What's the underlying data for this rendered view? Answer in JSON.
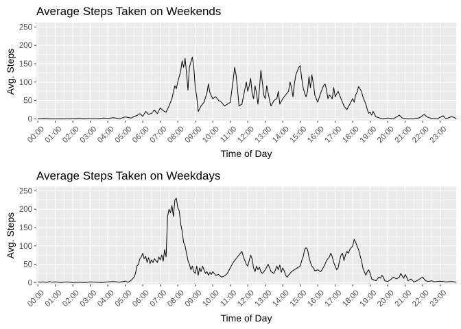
{
  "chart_data": [
    {
      "type": "line",
      "title": "Average Steps Taken on Weekends",
      "xlabel": "Time of Day",
      "ylabel": "Avg. Steps",
      "ylim": [
        -5,
        262
      ],
      "xlim": [
        -1,
        287
      ],
      "y_ticks": [
        0,
        50,
        100,
        150,
        200,
        250
      ],
      "x_tick_labels": [
        "00:00",
        "01:00",
        "02:00",
        "03:00",
        "04:00",
        "05:00",
        "06:00",
        "07:00",
        "08:00",
        "09:00",
        "10:00",
        "11:00",
        "12:00",
        "13:00",
        "14:00",
        "15:00",
        "16:00",
        "17:00",
        "18:00",
        "19:00",
        "20:00",
        "21:00",
        "22:00",
        "23:00"
      ],
      "grid": true,
      "x_unit": "5-minute interval of day",
      "points": [
        [
          0,
          0
        ],
        [
          4,
          1
        ],
        [
          8,
          0
        ],
        [
          20,
          0
        ],
        [
          28,
          1
        ],
        [
          40,
          0
        ],
        [
          45,
          2
        ],
        [
          48,
          1
        ],
        [
          52,
          3
        ],
        [
          56,
          0
        ],
        [
          60,
          5
        ],
        [
          64,
          2
        ],
        [
          66,
          6
        ],
        [
          68,
          9
        ],
        [
          70,
          14
        ],
        [
          72,
          7
        ],
        [
          74,
          20
        ],
        [
          76,
          12
        ],
        [
          78,
          15
        ],
        [
          80,
          24
        ],
        [
          82,
          14
        ],
        [
          84,
          30
        ],
        [
          86,
          22
        ],
        [
          88,
          18
        ],
        [
          90,
          35
        ],
        [
          92,
          55
        ],
        [
          94,
          90
        ],
        [
          95,
          82
        ],
        [
          96,
          100
        ],
        [
          98,
          130
        ],
        [
          99,
          158
        ],
        [
          100,
          140
        ],
        [
          101,
          165
        ],
        [
          102,
          125
        ],
        [
          103,
          78
        ],
        [
          104,
          140
        ],
        [
          105,
          155
        ],
        [
          106,
          168
        ],
        [
          107,
          140
        ],
        [
          108,
          85
        ],
        [
          109,
          60
        ],
        [
          110,
          20
        ],
        [
          112,
          35
        ],
        [
          114,
          45
        ],
        [
          116,
          70
        ],
        [
          117,
          95
        ],
        [
          118,
          72
        ],
        [
          119,
          62
        ],
        [
          120,
          55
        ],
        [
          122,
          60
        ],
        [
          124,
          50
        ],
        [
          126,
          45
        ],
        [
          128,
          35
        ],
        [
          130,
          40
        ],
        [
          132,
          45
        ],
        [
          134,
          105
        ],
        [
          135,
          140
        ],
        [
          136,
          120
        ],
        [
          137,
          80
        ],
        [
          138,
          35
        ],
        [
          140,
          40
        ],
        [
          142,
          80
        ],
        [
          143,
          100
        ],
        [
          144,
          75
        ],
        [
          145,
          90
        ],
        [
          146,
          110
        ],
        [
          147,
          70
        ],
        [
          148,
          55
        ],
        [
          149,
          90
        ],
        [
          150,
          70
        ],
        [
          151,
          40
        ],
        [
          152,
          80
        ],
        [
          153,
          132
        ],
        [
          154,
          100
        ],
        [
          155,
          65
        ],
        [
          156,
          55
        ],
        [
          157,
          90
        ],
        [
          158,
          70
        ],
        [
          159,
          50
        ],
        [
          160,
          35
        ],
        [
          162,
          50
        ],
        [
          164,
          55
        ],
        [
          165,
          75
        ],
        [
          166,
          40
        ],
        [
          168,
          55
        ],
        [
          170,
          65
        ],
        [
          172,
          75
        ],
        [
          173,
          100
        ],
        [
          174,
          85
        ],
        [
          175,
          60
        ],
        [
          176,
          95
        ],
        [
          177,
          120
        ],
        [
          178,
          130
        ],
        [
          179,
          140
        ],
        [
          180,
          145
        ],
        [
          181,
          110
        ],
        [
          182,
          85
        ],
        [
          183,
          70
        ],
        [
          184,
          60
        ],
        [
          185,
          75
        ],
        [
          186,
          115
        ],
        [
          187,
          85
        ],
        [
          188,
          120
        ],
        [
          189,
          95
        ],
        [
          190,
          65
        ],
        [
          192,
          45
        ],
        [
          194,
          70
        ],
        [
          196,
          90
        ],
        [
          197,
          95
        ],
        [
          198,
          80
        ],
        [
          199,
          55
        ],
        [
          200,
          65
        ],
        [
          202,
          55
        ],
        [
          203,
          85
        ],
        [
          204,
          60
        ],
        [
          206,
          75
        ],
        [
          208,
          55
        ],
        [
          210,
          35
        ],
        [
          212,
          25
        ],
        [
          214,
          40
        ],
        [
          216,
          55
        ],
        [
          217,
          45
        ],
        [
          218,
          65
        ],
        [
          219,
          72
        ],
        [
          220,
          88
        ],
        [
          222,
          75
        ],
        [
          223,
          60
        ],
        [
          224,
          50
        ],
        [
          225,
          40
        ],
        [
          226,
          25
        ],
        [
          227,
          15
        ],
        [
          228,
          18
        ],
        [
          229,
          10
        ],
        [
          230,
          20
        ],
        [
          232,
          5
        ],
        [
          234,
          3
        ],
        [
          236,
          0
        ],
        [
          240,
          2
        ],
        [
          244,
          0
        ],
        [
          248,
          10
        ],
        [
          250,
          2
        ],
        [
          254,
          0
        ],
        [
          258,
          0
        ],
        [
          262,
          3
        ],
        [
          265,
          12
        ],
        [
          267,
          5
        ],
        [
          270,
          1
        ],
        [
          274,
          0
        ],
        [
          278,
          8
        ],
        [
          280,
          0
        ],
        [
          284,
          6
        ],
        [
          287,
          1
        ]
      ]
    },
    {
      "type": "line",
      "title": "Average Steps Taken on Weekdays",
      "xlabel": "Time of Day",
      "ylabel": "Avg. Steps",
      "ylim": [
        -5,
        262
      ],
      "xlim": [
        -1,
        287
      ],
      "y_ticks": [
        0,
        50,
        100,
        150,
        200,
        250
      ],
      "x_tick_labels": [
        "00:00",
        "01:00",
        "02:00",
        "03:00",
        "04:00",
        "05:00",
        "06:00",
        "07:00",
        "08:00",
        "09:00",
        "10:00",
        "11:00",
        "12:00",
        "13:00",
        "14:00",
        "15:00",
        "16:00",
        "17:00",
        "18:00",
        "19:00",
        "20:00",
        "21:00",
        "22:00",
        "23:00"
      ],
      "grid": true,
      "x_unit": "5-minute interval of day",
      "points": [
        [
          0,
          2
        ],
        [
          2,
          1
        ],
        [
          4,
          2
        ],
        [
          6,
          0
        ],
        [
          8,
          3
        ],
        [
          10,
          1
        ],
        [
          12,
          2
        ],
        [
          16,
          0
        ],
        [
          20,
          2
        ],
        [
          24,
          0
        ],
        [
          28,
          1
        ],
        [
          32,
          0
        ],
        [
          36,
          2
        ],
        [
          40,
          1
        ],
        [
          44,
          0
        ],
        [
          48,
          2
        ],
        [
          52,
          3
        ],
        [
          56,
          1
        ],
        [
          60,
          4
        ],
        [
          62,
          1
        ],
        [
          64,
          6
        ],
        [
          66,
          15
        ],
        [
          67,
          25
        ],
        [
          68,
          45
        ],
        [
          69,
          50
        ],
        [
          70,
          65
        ],
        [
          71,
          70
        ],
        [
          72,
          80
        ],
        [
          73,
          65
        ],
        [
          74,
          72
        ],
        [
          75,
          55
        ],
        [
          76,
          68
        ],
        [
          77,
          52
        ],
        [
          78,
          62
        ],
        [
          79,
          55
        ],
        [
          80,
          65
        ],
        [
          81,
          60
        ],
        [
          82,
          55
        ],
        [
          83,
          70
        ],
        [
          84,
          62
        ],
        [
          85,
          75
        ],
        [
          86,
          58
        ],
        [
          87,
          90
        ],
        [
          88,
          70
        ],
        [
          89,
          180
        ],
        [
          90,
          200
        ],
        [
          91,
          190
        ],
        [
          92,
          210
        ],
        [
          93,
          180
        ],
        [
          94,
          225
        ],
        [
          95,
          230
        ],
        [
          96,
          205
        ],
        [
          97,
          195
        ],
        [
          98,
          160
        ],
        [
          99,
          140
        ],
        [
          100,
          110
        ],
        [
          101,
          100
        ],
        [
          102,
          80
        ],
        [
          103,
          60
        ],
        [
          104,
          50
        ],
        [
          105,
          35
        ],
        [
          106,
          45
        ],
        [
          107,
          30
        ],
        [
          108,
          25
        ],
        [
          109,
          45
        ],
        [
          110,
          20
        ],
        [
          111,
          40
        ],
        [
          112,
          30
        ],
        [
          113,
          45
        ],
        [
          114,
          35
        ],
        [
          115,
          25
        ],
        [
          116,
          30
        ],
        [
          117,
          20
        ],
        [
          118,
          28
        ],
        [
          119,
          22
        ],
        [
          120,
          30
        ],
        [
          122,
          20
        ],
        [
          124,
          22
        ],
        [
          126,
          15
        ],
        [
          128,
          18
        ],
        [
          130,
          25
        ],
        [
          132,
          40
        ],
        [
          134,
          55
        ],
        [
          136,
          65
        ],
        [
          138,
          75
        ],
        [
          140,
          85
        ],
        [
          141,
          70
        ],
        [
          142,
          60
        ],
        [
          143,
          50
        ],
        [
          144,
          45
        ],
        [
          145,
          60
        ],
        [
          146,
          75
        ],
        [
          147,
          65
        ],
        [
          148,
          40
        ],
        [
          149,
          30
        ],
        [
          150,
          45
        ],
        [
          151,
          35
        ],
        [
          152,
          42
        ],
        [
          153,
          30
        ],
        [
          154,
          25
        ],
        [
          156,
          35
        ],
        [
          158,
          50
        ],
        [
          159,
          40
        ],
        [
          160,
          30
        ],
        [
          162,
          25
        ],
        [
          164,
          45
        ],
        [
          165,
          35
        ],
        [
          166,
          48
        ],
        [
          167,
          28
        ],
        [
          168,
          40
        ],
        [
          169,
          32
        ],
        [
          170,
          20
        ],
        [
          171,
          15
        ],
        [
          172,
          20
        ],
        [
          174,
          30
        ],
        [
          176,
          35
        ],
        [
          178,
          40
        ],
        [
          180,
          45
        ],
        [
          181,
          60
        ],
        [
          182,
          70
        ],
        [
          183,
          90
        ],
        [
          184,
          95
        ],
        [
          185,
          90
        ],
        [
          186,
          70
        ],
        [
          187,
          55
        ],
        [
          188,
          45
        ],
        [
          189,
          40
        ],
        [
          190,
          32
        ],
        [
          192,
          35
        ],
        [
          194,
          30
        ],
        [
          195,
          35
        ],
        [
          196,
          42
        ],
        [
          197,
          50
        ],
        [
          198,
          60
        ],
        [
          199,
          65
        ],
        [
          200,
          70
        ],
        [
          201,
          80
        ],
        [
          202,
          70
        ],
        [
          203,
          55
        ],
        [
          204,
          45
        ],
        [
          205,
          35
        ],
        [
          206,
          40
        ],
        [
          207,
          60
        ],
        [
          208,
          75
        ],
        [
          209,
          80
        ],
        [
          210,
          60
        ],
        [
          211,
          75
        ],
        [
          212,
          85
        ],
        [
          213,
          80
        ],
        [
          214,
          90
        ],
        [
          215,
          95
        ],
        [
          216,
          100
        ],
        [
          217,
          118
        ],
        [
          218,
          110
        ],
        [
          219,
          100
        ],
        [
          220,
          90
        ],
        [
          221,
          75
        ],
        [
          222,
          60
        ],
        [
          223,
          40
        ],
        [
          224,
          30
        ],
        [
          225,
          20
        ],
        [
          226,
          30
        ],
        [
          227,
          35
        ],
        [
          228,
          25
        ],
        [
          229,
          10
        ],
        [
          230,
          8
        ],
        [
          232,
          5
        ],
        [
          234,
          15
        ],
        [
          235,
          12
        ],
        [
          236,
          20
        ],
        [
          237,
          15
        ],
        [
          238,
          5
        ],
        [
          240,
          3
        ],
        [
          242,
          8
        ],
        [
          244,
          15
        ],
        [
          246,
          10
        ],
        [
          248,
          15
        ],
        [
          249,
          25
        ],
        [
          250,
          18
        ],
        [
          251,
          12
        ],
        [
          252,
          22
        ],
        [
          253,
          15
        ],
        [
          254,
          5
        ],
        [
          256,
          10
        ],
        [
          258,
          2
        ],
        [
          260,
          5
        ],
        [
          262,
          10
        ],
        [
          264,
          15
        ],
        [
          265,
          10
        ],
        [
          266,
          5
        ],
        [
          268,
          3
        ],
        [
          270,
          5
        ],
        [
          272,
          2
        ],
        [
          276,
          4
        ],
        [
          280,
          2
        ],
        [
          284,
          3
        ],
        [
          287,
          1
        ]
      ]
    }
  ]
}
